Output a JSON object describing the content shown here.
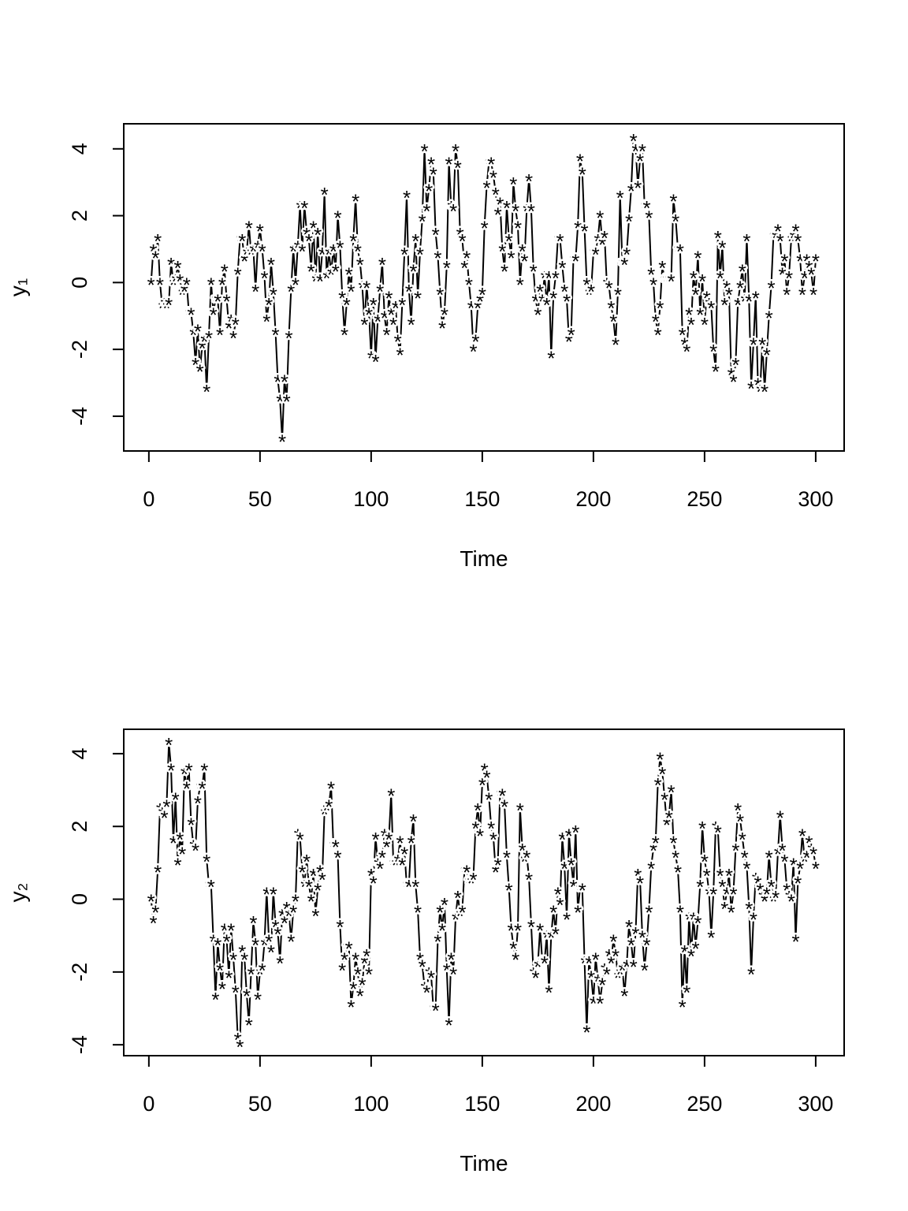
{
  "chart_data": [
    {
      "type": "line",
      "marker": "*",
      "color": "#000000",
      "xlabel": "Time",
      "ylabel": "y₁",
      "xlim": [
        -11.3,
        312.8
      ],
      "ylim": [
        -5.04,
        4.75
      ],
      "xticks": [
        0,
        50,
        100,
        150,
        200,
        250,
        300
      ],
      "yticks": [
        -4,
        -2,
        0,
        2,
        4
      ],
      "x": [
        1,
        2,
        3,
        4,
        5,
        6,
        7,
        8,
        9,
        10,
        11,
        12,
        13,
        14,
        15,
        16,
        17,
        18,
        19,
        20,
        21,
        22,
        23,
        24,
        25,
        26,
        27,
        28,
        29,
        30,
        31,
        32,
        33,
        34,
        35,
        36,
        37,
        38,
        39,
        40,
        41,
        42,
        43,
        44,
        45,
        46,
        47,
        48,
        49,
        50,
        51,
        52,
        53,
        54,
        55,
        56,
        57,
        58,
        59,
        60,
        61,
        62,
        63,
        64,
        65,
        66,
        67,
        68,
        69,
        70,
        71,
        72,
        73,
        74,
        75,
        76,
        77,
        78,
        79,
        80,
        81,
        82,
        83,
        84,
        85,
        86,
        87,
        88,
        89,
        90,
        91,
        92,
        93,
        94,
        95,
        96,
        97,
        98,
        99,
        100,
        101,
        102,
        103,
        104,
        105,
        106,
        107,
        108,
        109,
        110,
        111,
        112,
        113,
        114,
        115,
        116,
        117,
        118,
        119,
        120,
        121,
        122,
        123,
        124,
        125,
        126,
        127,
        128,
        129,
        130,
        131,
        132,
        133,
        134,
        135,
        136,
        137,
        138,
        139,
        140,
        141,
        142,
        143,
        144,
        145,
        146,
        147,
        148,
        149,
        150,
        151,
        152,
        153,
        154,
        155,
        156,
        157,
        158,
        159,
        160,
        161,
        162,
        163,
        164,
        165,
        166,
        167,
        168,
        169,
        170,
        171,
        172,
        173,
        174,
        175,
        176,
        177,
        178,
        179,
        180,
        181,
        182,
        183,
        184,
        185,
        186,
        187,
        188,
        189,
        190,
        191,
        192,
        193,
        194,
        195,
        196,
        197,
        198,
        199,
        200,
        201,
        202,
        203,
        204,
        205,
        206,
        207,
        208,
        209,
        210,
        211,
        212,
        213,
        214,
        215,
        216,
        217,
        218,
        219,
        220,
        221,
        222,
        223,
        224,
        225,
        226,
        227,
        228,
        229,
        230,
        231,
        232,
        233,
        234,
        235,
        236,
        237,
        238,
        239,
        240,
        241,
        242,
        243,
        244,
        245,
        246,
        247,
        248,
        249,
        250,
        251,
        252,
        253,
        254,
        255,
        256,
        257,
        258,
        259,
        260,
        261,
        262,
        263,
        264,
        265,
        266,
        267,
        268,
        269,
        270,
        271,
        272,
        273,
        274,
        275,
        276,
        277,
        278,
        279,
        280,
        281,
        282,
        283,
        284,
        285,
        286,
        287,
        288,
        289,
        290,
        291,
        292,
        293,
        294,
        295,
        296,
        297,
        298,
        299,
        300
      ],
      "values": [
        0,
        1,
        0.8,
        1.3,
        0,
        -0.7,
        -0.6,
        -0.7,
        -0.6,
        0.6,
        0,
        0.1,
        0.5,
        0.1,
        -0.3,
        -0.2,
        0,
        -0.9,
        -0.9,
        -1.5,
        -2.4,
        -1.4,
        -2.6,
        -1.9,
        -1.7,
        -3.2,
        -1.6,
        0,
        -0.9,
        -0.5,
        -0.5,
        -1.5,
        0,
        0.4,
        -0.5,
        -1.3,
        -1.1,
        -1.6,
        -1.2,
        0.3,
        1.3,
        1.3,
        0.7,
        0.9,
        1.7,
        0.9,
        1,
        -0.2,
        1.1,
        1.6,
        1,
        0.2,
        -1.1,
        -0.6,
        0.6,
        -0.3,
        -1.5,
        -2.9,
        -3.5,
        -4.7,
        -2.9,
        -3.5,
        -1.6,
        -0.2,
        1,
        0,
        1.1,
        2.3,
        1,
        2.3,
        1.5,
        1.3,
        0.4,
        1.7,
        0.1,
        1.5,
        0.1,
        0.9,
        2.7,
        0.2,
        0.9,
        0.3,
        1,
        0.4,
        2,
        1.1,
        -0.4,
        -1.5,
        -0.6,
        0.3,
        -0.2,
        1.3,
        2.5,
        1,
        0.6,
        -0.1,
        -1.2,
        -0.1,
        -0.9,
        -2.2,
        -0.6,
        -2.3,
        -1.1,
        -0.2,
        0.6,
        -1,
        -1.5,
        -0.4,
        -0.9,
        -1.2,
        -0.7,
        -1.7,
        -2.1,
        -0.6,
        0.9,
        2.6,
        -0.2,
        -1.2,
        0.4,
        1.3,
        -0.4,
        0.9,
        1.9,
        4,
        2.2,
        2.8,
        3.6,
        3.3,
        1.5,
        0.8,
        -0.3,
        -1.3,
        -0.9,
        0.5,
        3.6,
        2.3,
        2.2,
        4,
        3.5,
        1.5,
        1.3,
        0.5,
        0.8,
        0,
        -0.7,
        -2,
        -1.7,
        -0.7,
        -0.5,
        -0.3,
        1.7,
        2.9,
        3.6,
        3.6,
        3.2,
        2.7,
        2.1,
        2.4,
        1,
        0.4,
        2.3,
        1.3,
        0.8,
        3,
        2.2,
        1.7,
        0,
        1,
        0.7,
        2.2,
        3.1,
        2.2,
        0.4,
        -0.5,
        -0.9,
        -0.2,
        -0.5,
        0.2,
        -0.6,
        0.2,
        -2.2,
        -0.4,
        0.2,
        1.3,
        1.3,
        0.5,
        -0.2,
        -0.5,
        -1.7,
        -1.5,
        0.7,
        0.7,
        1.7,
        3.7,
        3.3,
        1.6,
        0,
        -0.3,
        -0.2,
        0.9,
        0.9,
        1.3,
        2,
        1.2,
        1.4,
        0,
        -0.1,
        -0.7,
        -1.1,
        -1.8,
        -0.3,
        2.6,
        0.6,
        0.6,
        0.9,
        1.9,
        2.8,
        4.3,
        4,
        2.9,
        3.7,
        4,
        2.3,
        2.3,
        2,
        0.3,
        0,
        -1.1,
        -1.5,
        -0.7,
        0.5,
        0.1,
        0.1,
        0.1,
        0.1,
        2.5,
        1.9,
        1,
        1,
        -1.5,
        -1.8,
        -2,
        -0.9,
        -1.2,
        0.2,
        -0.3,
        0.8,
        -0.9,
        0.1,
        -1.2,
        -0.4,
        -0.6,
        -0.7,
        -2,
        -2.6,
        1.4,
        0.2,
        1.1,
        -0.6,
        -0.1,
        -0.3,
        -2.7,
        -2.9,
        -2.4,
        -0.6,
        -0.1,
        0.4,
        -0.5,
        1.3,
        -0.5,
        -3.1,
        -1.8,
        -0.4,
        -3,
        -3.2,
        -1.8,
        -3.2,
        -2.1,
        -1,
        -0.1,
        1.4,
        1.4,
        1.6,
        1.3,
        0.3,
        0.7,
        -0.3,
        0.2,
        1.3,
        1.4,
        1.6,
        1.3,
        0.7,
        -0.3,
        0.2,
        0.7,
        0.5,
        0.3,
        -0.3,
        0.7
      ]
    },
    {
      "type": "line",
      "marker": "*",
      "color": "#000000",
      "xlabel": "Time",
      "ylabel": "y₂",
      "xlim": [
        -11.3,
        312.8
      ],
      "ylim": [
        -4.3,
        4.67
      ],
      "xticks": [
        0,
        50,
        100,
        150,
        200,
        250,
        300
      ],
      "yticks": [
        -4,
        -2,
        0,
        2,
        4
      ],
      "x": [
        1,
        2,
        3,
        4,
        5,
        6,
        7,
        8,
        9,
        10,
        11,
        12,
        13,
        14,
        15,
        16,
        17,
        18,
        19,
        20,
        21,
        22,
        23,
        24,
        25,
        26,
        27,
        28,
        29,
        30,
        31,
        32,
        33,
        34,
        35,
        36,
        37,
        38,
        39,
        40,
        41,
        42,
        43,
        44,
        45,
        46,
        47,
        48,
        49,
        50,
        51,
        52,
        53,
        54,
        55,
        56,
        57,
        58,
        59,
        60,
        61,
        62,
        63,
        64,
        65,
        66,
        67,
        68,
        69,
        70,
        71,
        72,
        73,
        74,
        75,
        76,
        77,
        78,
        79,
        80,
        81,
        82,
        83,
        84,
        85,
        86,
        87,
        88,
        89,
        90,
        91,
        92,
        93,
        94,
        95,
        96,
        97,
        98,
        99,
        100,
        101,
        102,
        103,
        104,
        105,
        106,
        107,
        108,
        109,
        110,
        111,
        112,
        113,
        114,
        115,
        116,
        117,
        118,
        119,
        120,
        121,
        122,
        123,
        124,
        125,
        126,
        127,
        128,
        129,
        130,
        131,
        132,
        133,
        134,
        135,
        136,
        137,
        138,
        139,
        140,
        141,
        142,
        143,
        144,
        145,
        146,
        147,
        148,
        149,
        150,
        151,
        152,
        153,
        154,
        155,
        156,
        157,
        158,
        159,
        160,
        161,
        162,
        163,
        164,
        165,
        166,
        167,
        168,
        169,
        170,
        171,
        172,
        173,
        174,
        175,
        176,
        177,
        178,
        179,
        180,
        181,
        182,
        183,
        184,
        185,
        186,
        187,
        188,
        189,
        190,
        191,
        192,
        193,
        194,
        195,
        196,
        197,
        198,
        199,
        200,
        201,
        202,
        203,
        204,
        205,
        206,
        207,
        208,
        209,
        210,
        211,
        212,
        213,
        214,
        215,
        216,
        217,
        218,
        219,
        220,
        221,
        222,
        223,
        224,
        225,
        226,
        227,
        228,
        229,
        230,
        231,
        232,
        233,
        234,
        235,
        236,
        237,
        238,
        239,
        240,
        241,
        242,
        243,
        244,
        245,
        246,
        247,
        248,
        249,
        250,
        251,
        252,
        253,
        254,
        255,
        256,
        257,
        258,
        259,
        260,
        261,
        262,
        263,
        264,
        265,
        266,
        267,
        268,
        269,
        270,
        271,
        272,
        273,
        274,
        275,
        276,
        277,
        278,
        279,
        280,
        281,
        282,
        283,
        284,
        285,
        286,
        287,
        288,
        289,
        290,
        291,
        292,
        293,
        294,
        295,
        296,
        297,
        298,
        299,
        300
      ],
      "values": [
        0,
        -0.6,
        -0.3,
        0.8,
        2.5,
        2.4,
        2.3,
        2.6,
        4.3,
        3.6,
        1.6,
        2.8,
        1,
        1.7,
        1.3,
        3.5,
        3.1,
        3.6,
        2.1,
        1.5,
        1.4,
        2.7,
        3.1,
        3.1,
        3.6,
        1.1,
        0.4,
        0.4,
        -1.1,
        -2.7,
        -1.2,
        -1.9,
        -2.4,
        -0.8,
        -1.1,
        -2.1,
        -0.8,
        -1.6,
        -2.5,
        -3.8,
        -4,
        -1.4,
        -1.6,
        -2.6,
        -3.4,
        -2,
        -0.6,
        -1.2,
        -2.7,
        -2,
        -1.9,
        -1.2,
        0.2,
        -1.1,
        -1.4,
        0.2,
        -0.7,
        -0.9,
        -1.7,
        -0.4,
        -0.6,
        -0.2,
        -0.4,
        -1.1,
        -0.3,
        0,
        1.8,
        1.7,
        0.8,
        0.4,
        1.1,
        0.4,
        0,
        0.7,
        -0.4,
        0.3,
        0.8,
        0.6,
        2.4,
        2.5,
        2.6,
        3.1,
        1.5,
        1.5,
        1.2,
        -0.7,
        -1.9,
        -1.6,
        -1.3,
        -1.3,
        -2.9,
        -2.4,
        -1.6,
        -2,
        -2.6,
        -2.3,
        -1.7,
        -1.5,
        -2,
        0.7,
        0.5,
        1.7,
        1,
        0.9,
        1.2,
        1.8,
        1.5,
        1.7,
        2.9,
        1,
        1,
        1.1,
        1.6,
        1,
        1.3,
        0.4,
        0.4,
        1.6,
        2.2,
        0.4,
        -0.3,
        -1.6,
        -1.8,
        -2.4,
        -2.5,
        -2,
        -2.1,
        -3,
        -3,
        -1.1,
        -0.3,
        -0.8,
        -0.1,
        -1.9,
        -3.4,
        -1.6,
        -2,
        -0.5,
        0.1,
        -0.4,
        -0.3,
        0.8,
        0.8,
        0.5,
        0.5,
        0.6,
        2,
        2.5,
        1.8,
        3.2,
        3.6,
        3.4,
        2.8,
        2,
        1.7,
        0.8,
        1,
        2.9,
        2.9,
        2.6,
        1.2,
        0.3,
        -0.8,
        -1.3,
        -1.6,
        -0.8,
        2.5,
        1.4,
        1.1,
        1.2,
        0.6,
        -0.7,
        -2,
        -2.1,
        -1.8,
        -0.8,
        -1.7,
        -1.7,
        -1,
        -2.5,
        -1,
        -0.3,
        -0.9,
        0.2,
        -0.1,
        1.7,
        0.9,
        -0.5,
        1.8,
        1,
        0.4,
        1.9,
        -0.3,
        0.3,
        0.3,
        -1.7,
        -3.6,
        -1.7,
        -2.1,
        -2.8,
        -1.6,
        -2.2,
        -2.8,
        -2.3,
        -1.9,
        -2,
        -1.5,
        -1.7,
        -1.1,
        -1.5,
        -2.1,
        -2,
        -1.9,
        -2.6,
        -1.8,
        -0.7,
        -1.2,
        -1.8,
        -0.9,
        0.7,
        0.5,
        -1,
        -1.9,
        -1.2,
        -0.3,
        0.9,
        1.4,
        1.6,
        3.2,
        3.9,
        3.5,
        2.8,
        2.1,
        2.3,
        3,
        1.6,
        1.2,
        0.8,
        -0.3,
        -2.9,
        -1.4,
        -2.5,
        -0.5,
        -1.5,
        -0.5,
        -1.3,
        -0.6,
        0.4,
        2,
        1.1,
        0.7,
        0.2,
        -1,
        0.2,
        2,
        1.9,
        0.7,
        0.4,
        -0.2,
        0.2,
        0.7,
        -0.3,
        0.2,
        1.4,
        2.5,
        2.2,
        1.7,
        1.2,
        0.9,
        -0.2,
        -2,
        -0.5,
        0.6,
        0.5,
        0.3,
        0.1,
        0,
        0.2,
        1.2,
        0.4,
        0,
        0.1,
        1.3,
        2.3,
        1.4,
        1.1,
        0.3,
        0.1,
        0,
        1,
        -1.1,
        0.5,
        0.9,
        1.8,
        1.1,
        1.2,
        1.6,
        1.4,
        1.3,
        0.9
      ]
    }
  ]
}
